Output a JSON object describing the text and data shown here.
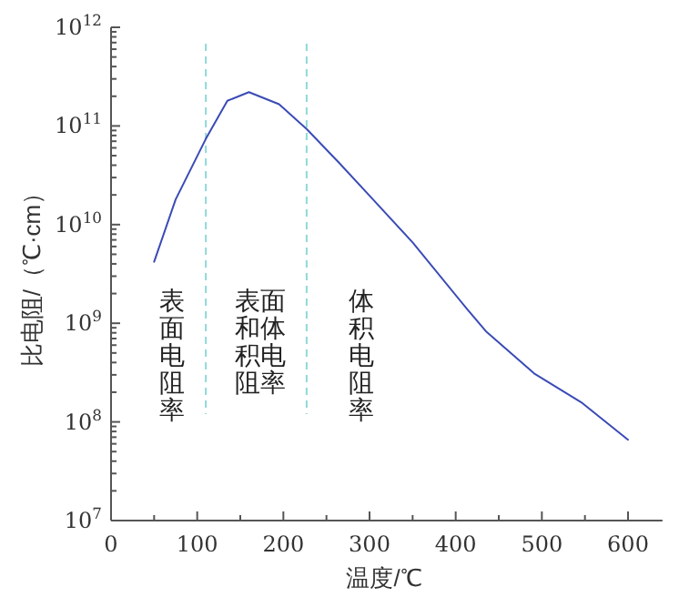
{
  "chart_data": {
    "type": "line",
    "xlabel": "温度/℃",
    "ylabel": "比电阻/（℃·cm）",
    "x": [
      50,
      75,
      110,
      135,
      160,
      195,
      227,
      265,
      304,
      350,
      413,
      435,
      491,
      547,
      600
    ],
    "series": [
      {
        "color": "#3a4bb5",
        "values": [
          4200000000.0,
          18000000000.0,
          74000000000.0,
          180000000000.0,
          220000000000.0,
          166000000000.0,
          93000000000.0,
          42000000000.0,
          18000000000.0,
          6600000000.0,
          1400000000.0,
          830000000.0,
          310000000.0,
          155000000.0,
          66000000.0
        ]
      }
    ],
    "log": "y",
    "grid": false,
    "marker": "none",
    "line_style": "solid",
    "xlim": [
      0,
      640
    ],
    "xticks": [
      0,
      100,
      200,
      300,
      400,
      500,
      600
    ],
    "ylim": [
      10000000.0,
      1000000000000.0
    ],
    "yticks": [
      {
        "value": 10000000.0,
        "label": "10$^{7}$"
      },
      {
        "value": 100000000.0,
        "label": "10$^{8}$"
      },
      {
        "value": 1000000000.0,
        "label": "10$^{9}$"
      },
      {
        "value": 10000000000.0,
        "label": "10$^{10}$"
      },
      {
        "value": 100000000000.0,
        "label": "10$^{11}$"
      },
      {
        "value": 1000000000000.0,
        "label": "10$^{12}$"
      }
    ],
    "ref_lines": [
      {
        "axis": "x",
        "value": 110,
        "color": "#8fd8d8",
        "line_style": "dashed"
      },
      {
        "axis": "x",
        "value": 227,
        "color": "#8fd8d8",
        "line_style": "dashed"
      }
    ],
    "annotations": [
      "表面电阻率",
      "表面和体积电阻率",
      "体积电阻率"
    ]
  }
}
